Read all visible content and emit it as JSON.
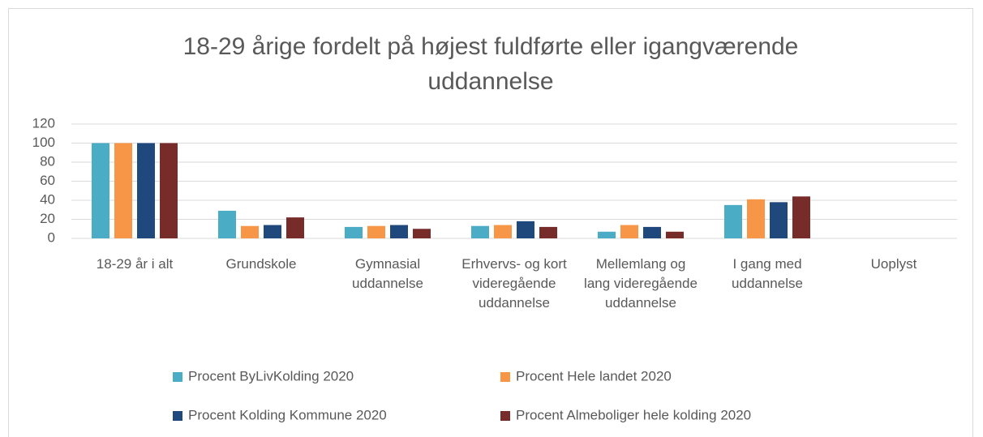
{
  "chart_data": {
    "type": "bar",
    "title": "18-29 årige  fordelt på højest fuldførte eller igangværende uddannelse",
    "categories": [
      "18-29 år i alt",
      "Grundskole",
      "Gymnasial uddannelse",
      "Erhvervs- og kort videregående uddannelse",
      "Mellemlang og lang videregående uddannelse",
      "I gang med uddannelse",
      "Uoplyst"
    ],
    "series": [
      {
        "name": "Procent ByLivKolding  2020",
        "color": "#4bacc6",
        "values": [
          100,
          29,
          12,
          13,
          7,
          35,
          0
        ]
      },
      {
        "name": "Procent Hele landet 2020",
        "color": "#f79646",
        "values": [
          100,
          13,
          13,
          14,
          14,
          41,
          0
        ]
      },
      {
        "name": "Procent Kolding Kommune 2020",
        "color": "#1f497d",
        "values": [
          100,
          14,
          14,
          18,
          12,
          38,
          0
        ]
      },
      {
        "name": "Procent Almeboliger hele kolding 2020",
        "color": "#772c2a",
        "values": [
          100,
          22,
          10,
          12,
          7,
          44,
          0
        ]
      }
    ],
    "ylim": [
      0,
      120
    ],
    "yticks": [
      0,
      20,
      40,
      60,
      80,
      100,
      120
    ],
    "grid": true,
    "legend": "bottom"
  }
}
